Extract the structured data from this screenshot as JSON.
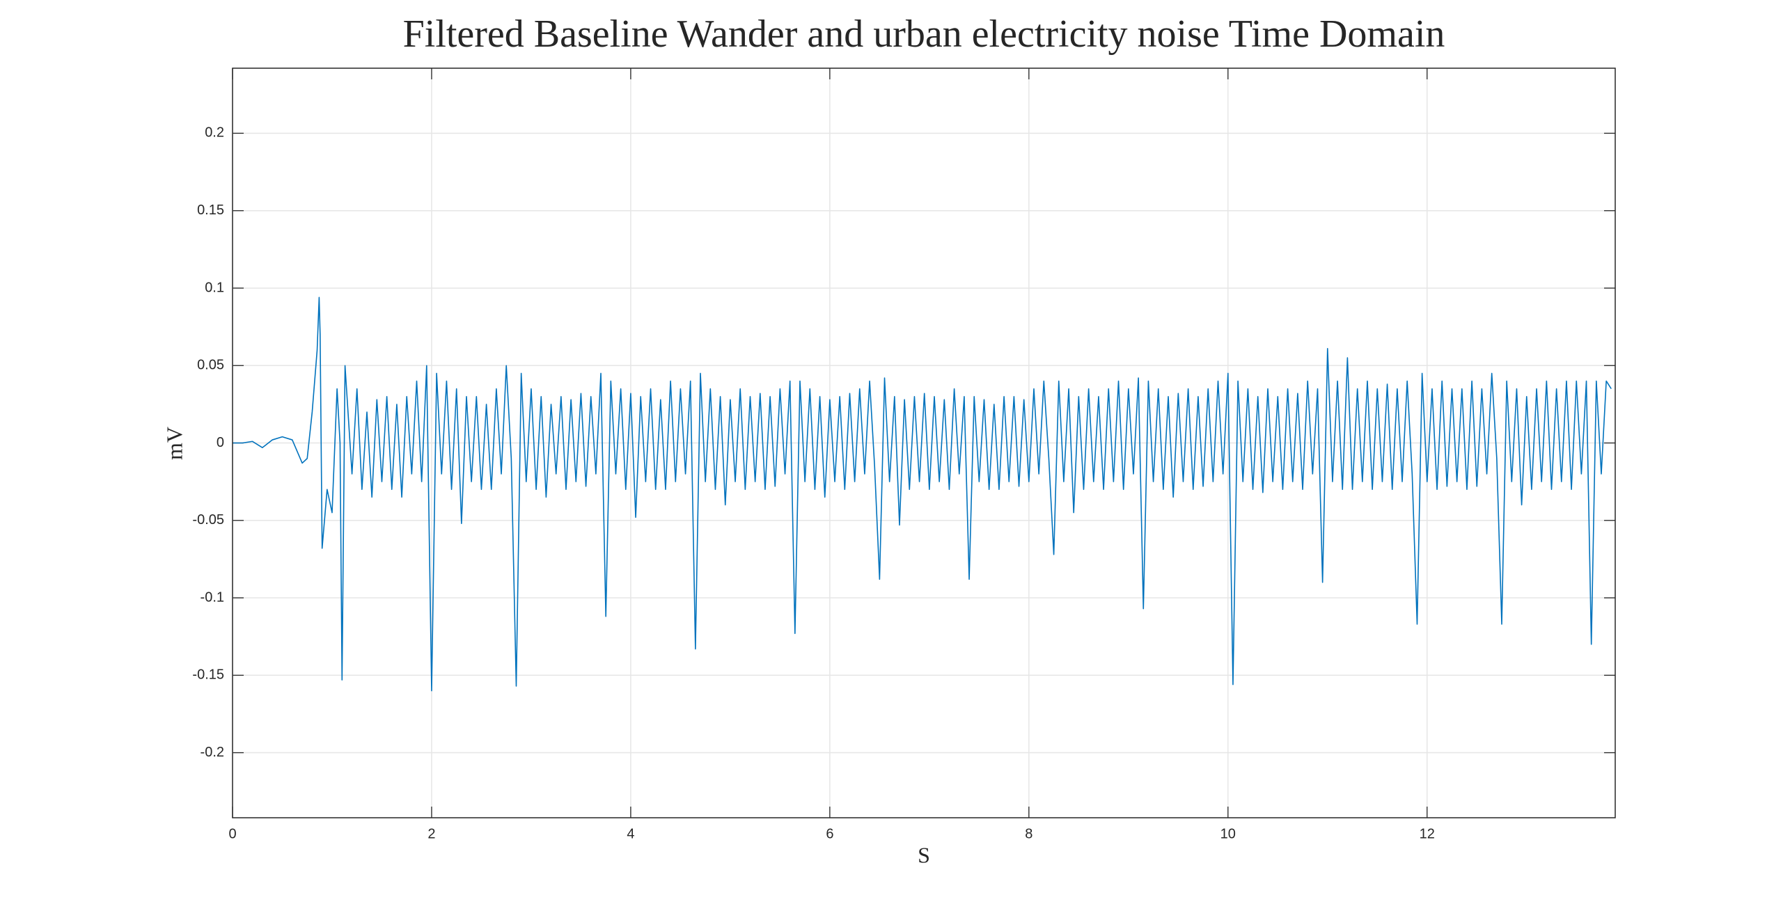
{
  "chart_data": {
    "type": "line",
    "title": "Filtered Baseline Wander and urban electricity noise Time Domain",
    "x_label": "S",
    "y_label": "mV",
    "xlim": [
      0,
      13.89
    ],
    "ylim": [
      -0.242,
      0.242
    ],
    "xticks": [
      0,
      2,
      4,
      6,
      8,
      10,
      12
    ],
    "yticks": [
      -0.2,
      -0.15,
      -0.1,
      -0.05,
      0,
      0.05,
      0.1,
      0.15,
      0.2
    ],
    "grid": true,
    "series": [
      {
        "color": "#0072bd",
        "x": [
          0,
          0.1,
          0.2,
          0.3,
          0.4,
          0.5,
          0.6,
          0.7,
          0.75,
          0.8,
          0.85,
          0.87,
          0.88,
          0.9,
          0.95,
          1.0,
          1.05,
          1.08,
          1.1,
          1.13,
          1.15,
          1.2,
          1.25,
          1.3,
          1.35,
          1.4,
          1.45,
          1.5,
          1.55,
          1.6,
          1.65,
          1.7,
          1.75,
          1.8,
          1.85,
          1.9,
          1.95,
          2.0,
          2.05,
          2.1,
          2.15,
          2.2,
          2.25,
          2.3,
          2.35,
          2.4,
          2.45,
          2.5,
          2.55,
          2.6,
          2.65,
          2.7,
          2.75,
          2.8,
          2.85,
          2.9,
          2.95,
          3.0,
          3.05,
          3.1,
          3.15,
          3.2,
          3.25,
          3.3,
          3.35,
          3.4,
          3.45,
          3.5,
          3.55,
          3.6,
          3.65,
          3.7,
          3.75,
          3.8,
          3.85,
          3.9,
          3.95,
          4.0,
          4.05,
          4.1,
          4.15,
          4.2,
          4.25,
          4.3,
          4.35,
          4.4,
          4.45,
          4.5,
          4.55,
          4.6,
          4.65,
          4.7,
          4.75,
          4.8,
          4.85,
          4.9,
          4.95,
          5.0,
          5.05,
          5.1,
          5.15,
          5.2,
          5.25,
          5.3,
          5.35,
          5.4,
          5.45,
          5.5,
          5.55,
          5.6,
          5.65,
          5.7,
          5.75,
          5.8,
          5.85,
          5.9,
          5.95,
          6.0,
          6.05,
          6.1,
          6.15,
          6.2,
          6.25,
          6.3,
          6.35,
          6.4,
          6.45,
          6.5,
          6.55,
          6.6,
          6.65,
          6.7,
          6.75,
          6.8,
          6.85,
          6.9,
          6.95,
          7.0,
          7.05,
          7.1,
          7.15,
          7.2,
          7.25,
          7.3,
          7.35,
          7.4,
          7.45,
          7.5,
          7.55,
          7.6,
          7.65,
          7.7,
          7.75,
          7.8,
          7.85,
          7.9,
          7.95,
          8.0,
          8.05,
          8.1,
          8.15,
          8.2,
          8.25,
          8.3,
          8.35,
          8.4,
          8.45,
          8.5,
          8.55,
          8.6,
          8.65,
          8.7,
          8.75,
          8.8,
          8.85,
          8.9,
          8.95,
          9.0,
          9.05,
          9.1,
          9.15,
          9.2,
          9.25,
          9.3,
          9.35,
          9.4,
          9.45,
          9.5,
          9.55,
          9.6,
          9.65,
          9.7,
          9.75,
          9.8,
          9.85,
          9.9,
          9.95,
          10.0,
          10.05,
          10.1,
          10.15,
          10.2,
          10.25,
          10.3,
          10.35,
          10.4,
          10.45,
          10.5,
          10.55,
          10.6,
          10.65,
          10.7,
          10.75,
          10.8,
          10.85,
          10.9,
          10.95,
          11.0,
          11.05,
          11.1,
          11.15,
          11.2,
          11.25,
          11.3,
          11.35,
          11.4,
          11.45,
          11.5,
          11.55,
          11.6,
          11.65,
          11.7,
          11.75,
          11.8,
          11.85,
          11.9,
          11.95,
          12.0,
          12.05,
          12.1,
          12.15,
          12.2,
          12.25,
          12.3,
          12.35,
          12.4,
          12.45,
          12.5,
          12.55,
          12.6,
          12.65,
          12.7,
          12.75,
          12.8,
          12.85,
          12.9,
          12.95,
          13.0,
          13.05,
          13.1,
          13.15,
          13.2,
          13.25,
          13.3,
          13.35,
          13.4,
          13.45,
          13.5,
          13.55,
          13.6,
          13.65,
          13.7,
          13.75,
          13.8,
          13.85
        ],
        "values": [
          0,
          0,
          0.001,
          -0.003,
          0.002,
          0.004,
          0.002,
          -0.013,
          -0.01,
          0.02,
          0.06,
          0.094,
          0.07,
          -0.068,
          -0.03,
          -0.045,
          0.035,
          0.0,
          -0.153,
          0.05,
          0.03,
          -0.02,
          0.035,
          -0.03,
          0.02,
          -0.035,
          0.028,
          -0.025,
          0.03,
          -0.03,
          0.025,
          -0.035,
          0.03,
          -0.02,
          0.04,
          -0.025,
          0.05,
          -0.16,
          0.045,
          -0.02,
          0.04,
          -0.03,
          0.035,
          -0.052,
          0.03,
          -0.025,
          0.03,
          -0.03,
          0.025,
          -0.03,
          0.035,
          -0.02,
          0.05,
          -0.01,
          -0.157,
          0.045,
          -0.025,
          0.035,
          -0.03,
          0.03,
          -0.035,
          0.025,
          -0.02,
          0.03,
          -0.03,
          0.028,
          -0.025,
          0.032,
          -0.028,
          0.03,
          -0.02,
          0.045,
          -0.112,
          0.04,
          -0.02,
          0.035,
          -0.03,
          0.032,
          -0.048,
          0.03,
          -0.025,
          0.035,
          -0.03,
          0.028,
          -0.03,
          0.04,
          -0.025,
          0.035,
          -0.02,
          0.04,
          -0.133,
          0.045,
          -0.025,
          0.035,
          -0.03,
          0.03,
          -0.04,
          0.028,
          -0.025,
          0.035,
          -0.03,
          0.03,
          -0.025,
          0.032,
          -0.03,
          0.03,
          -0.028,
          0.035,
          -0.02,
          0.04,
          -0.123,
          0.04,
          -0.025,
          0.035,
          -0.03,
          0.03,
          -0.035,
          0.028,
          -0.025,
          0.03,
          -0.03,
          0.032,
          -0.025,
          0.035,
          -0.02,
          0.04,
          -0.015,
          -0.088,
          0.042,
          -0.025,
          0.03,
          -0.053,
          0.028,
          -0.03,
          0.03,
          -0.025,
          0.032,
          -0.03,
          0.03,
          -0.025,
          0.028,
          -0.03,
          0.035,
          -0.02,
          0.03,
          -0.088,
          0.03,
          -0.025,
          0.028,
          -0.03,
          0.025,
          -0.03,
          0.03,
          -0.025,
          0.03,
          -0.028,
          0.028,
          -0.025,
          0.035,
          -0.02,
          0.04,
          -0.01,
          -0.072,
          0.04,
          -0.025,
          0.035,
          -0.045,
          0.03,
          -0.03,
          0.035,
          -0.025,
          0.03,
          -0.03,
          0.035,
          -0.025,
          0.04,
          -0.03,
          0.035,
          -0.02,
          0.042,
          -0.107,
          0.04,
          -0.025,
          0.035,
          -0.03,
          0.03,
          -0.035,
          0.032,
          -0.025,
          0.035,
          -0.03,
          0.03,
          -0.028,
          0.035,
          -0.025,
          0.04,
          -0.02,
          0.045,
          -0.156,
          0.04,
          -0.025,
          0.035,
          -0.03,
          0.03,
          -0.032,
          0.035,
          -0.025,
          0.03,
          -0.03,
          0.035,
          -0.025,
          0.032,
          -0.03,
          0.04,
          -0.02,
          0.035,
          -0.09,
          0.061,
          -0.025,
          0.04,
          -0.03,
          0.055,
          -0.03,
          0.035,
          -0.025,
          0.04,
          -0.03,
          0.035,
          -0.025,
          0.038,
          -0.03,
          0.035,
          -0.025,
          0.04,
          -0.02,
          -0.117,
          0.045,
          -0.025,
          0.035,
          -0.03,
          0.04,
          -0.028,
          0.035,
          -0.025,
          0.035,
          -0.03,
          0.04,
          -0.028,
          0.035,
          -0.02,
          0.045,
          -0.01,
          -0.117,
          0.04,
          -0.025,
          0.035,
          -0.04,
          0.03,
          -0.03,
          0.035,
          -0.025,
          0.04,
          -0.03,
          0.035,
          -0.025,
          0.04,
          -0.03,
          0.04,
          -0.02,
          0.04,
          -0.13,
          0.04,
          -0.02,
          0.04,
          0.035
        ]
      }
    ]
  }
}
